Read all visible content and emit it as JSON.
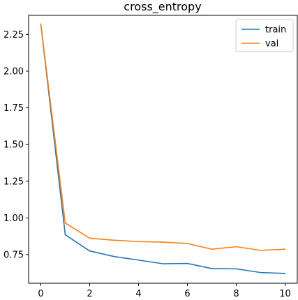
{
  "chart_data": {
    "type": "line",
    "title": "cross_entropy",
    "xlabel": "",
    "ylabel": "",
    "x": [
      0,
      1,
      2,
      3,
      4,
      5,
      6,
      7,
      8,
      9,
      10
    ],
    "xlim": [
      -0.5,
      10.5
    ],
    "ylim": [
      0.555,
      2.38
    ],
    "xticks": [
      0,
      2,
      4,
      6,
      8,
      10
    ],
    "yticks": [
      0.75,
      1.0,
      1.25,
      1.5,
      1.75,
      2.0,
      2.25
    ],
    "ytick_labels": [
      "0.75",
      "1.00",
      "1.25",
      "1.50",
      "1.75",
      "2.00",
      "2.25"
    ],
    "grid": false,
    "legend_position": "top-right",
    "series": [
      {
        "name": "train",
        "color": "#1f77b4",
        "values": [
          2.32,
          0.885,
          0.775,
          0.737,
          0.713,
          0.688,
          0.69,
          0.655,
          0.653,
          0.628,
          0.622
        ]
      },
      {
        "name": "val",
        "color": "#ff7f0e",
        "values": [
          2.32,
          0.965,
          0.862,
          0.848,
          0.839,
          0.835,
          0.826,
          0.787,
          0.804,
          0.779,
          0.787
        ]
      }
    ]
  }
}
